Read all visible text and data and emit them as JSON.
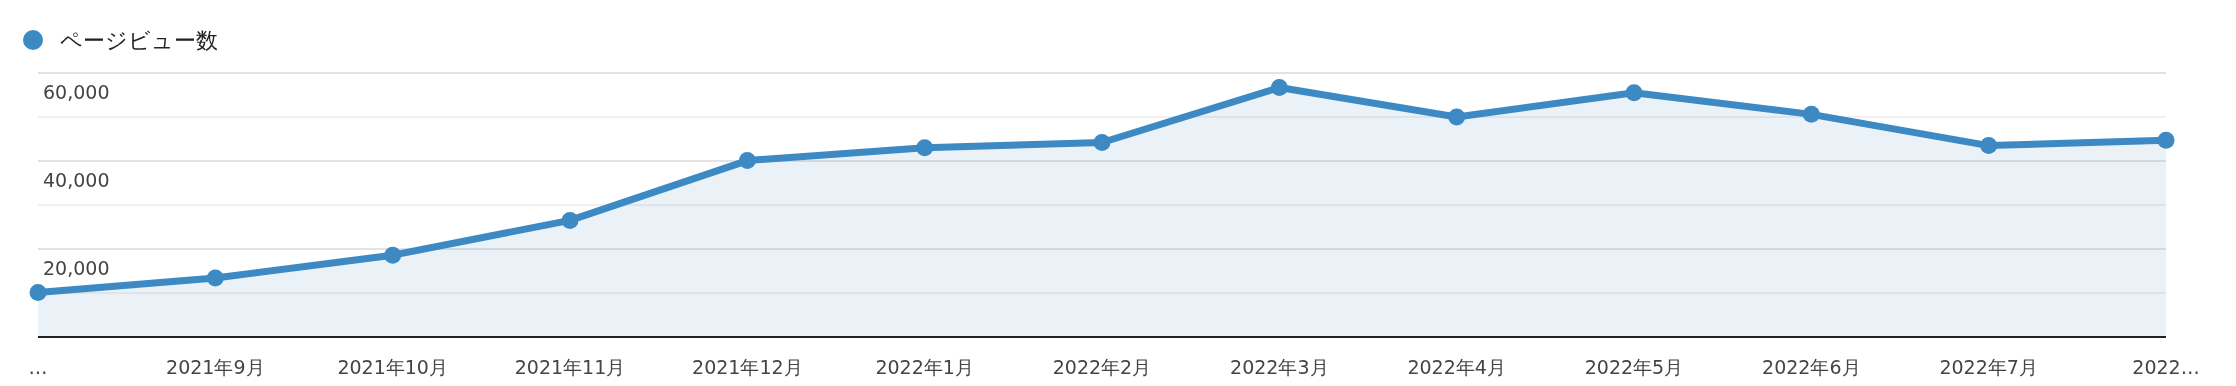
{
  "chart_data": {
    "type": "area",
    "categories": [
      "…",
      "2021年9月",
      "2021年10月",
      "2021年11月",
      "2021年12月",
      "2022年1月",
      "2022年2月",
      "2022年3月",
      "2022年4月",
      "2022年5月",
      "2022年6月",
      "2022年7月",
      "2022…"
    ],
    "series": [
      {
        "name": "ページビュー数",
        "color": "#3d89c3",
        "values": [
          10100,
          13400,
          18600,
          26500,
          40100,
          43000,
          44200,
          56700,
          50000,
          55500,
          50600,
          43500,
          44700
        ]
      }
    ],
    "ylim": [
      0,
      60000
    ],
    "yticks": [
      {
        "value": 0,
        "label": null
      },
      {
        "value": 10000,
        "label": null
      },
      {
        "value": 20000,
        "label": "20,000"
      },
      {
        "value": 30000,
        "label": null
      },
      {
        "value": 40000,
        "label": "40,000"
      },
      {
        "value": 50000,
        "label": null
      },
      {
        "value": 60000,
        "label": "60,000"
      }
    ],
    "grid": true,
    "legend": "top left",
    "marker": "circle",
    "line_style": "solid"
  }
}
